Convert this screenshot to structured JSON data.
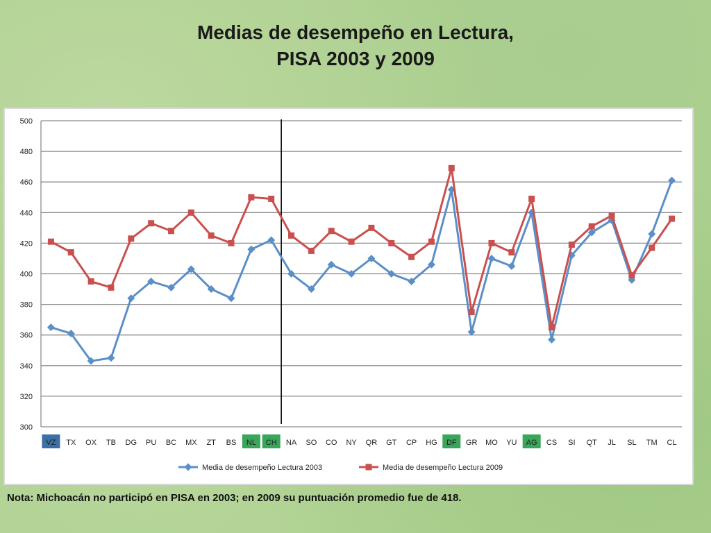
{
  "title": {
    "line1": "Medias de desempeño en Lectura,",
    "line2": "PISA 2003 y 2009"
  },
  "note": "Nota: Michoacán no participó en PISA en 2003; en 2009 su puntuación promedio fue de 418.",
  "chart_data": {
    "type": "line",
    "categories": [
      "VZ",
      "TX",
      "OX",
      "TB",
      "DG",
      "PU",
      "BC",
      "MX",
      "ZT",
      "BS",
      "NL",
      "CH",
      "NA",
      "SO",
      "CO",
      "NY",
      "QR",
      "GT",
      "CP",
      "HG",
      "DF",
      "GR",
      "MO",
      "YU",
      "AG",
      "CS",
      "SI",
      "QT",
      "JL",
      "SL",
      "TM",
      "CL"
    ],
    "highlighted_categories": {
      "VZ": "#3b6fa6",
      "NL": "#3aa65a",
      "CH": "#3aa65a",
      "DF": "#3aa65a",
      "AG": "#3aa65a"
    },
    "ylim": [
      300,
      500
    ],
    "yticks": [
      300,
      320,
      340,
      360,
      380,
      400,
      420,
      440,
      460,
      480,
      500
    ],
    "grid": true,
    "vertical_separator_after": "CH",
    "legend_position": "bottom",
    "series": [
      {
        "name": "Media de desempeño Lectura 2003",
        "color": "#5b8fc8",
        "marker": "diamond",
        "values": [
          365,
          361,
          343,
          345,
          384,
          395,
          391,
          403,
          390,
          384,
          416,
          422,
          400,
          390,
          406,
          400,
          410,
          400,
          395,
          406,
          455,
          362,
          410,
          405,
          440,
          357,
          412,
          427,
          435,
          396,
          426,
          461
        ]
      },
      {
        "name": "Media de desempeño Lectura 2009",
        "color": "#c9504e",
        "marker": "square",
        "values": [
          421,
          414,
          395,
          391,
          423,
          433,
          428,
          440,
          425,
          420,
          450,
          449,
          425,
          415,
          428,
          421,
          430,
          420,
          411,
          421,
          469,
          375,
          420,
          414,
          449,
          365,
          419,
          431,
          438,
          399,
          417,
          436
        ]
      }
    ]
  }
}
